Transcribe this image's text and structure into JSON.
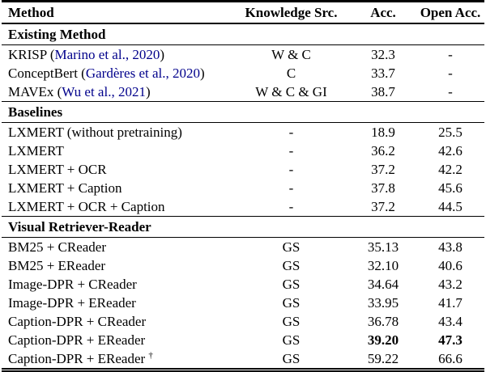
{
  "page": {
    "background": "#ffffff",
    "text_color": "#000000"
  },
  "table": {
    "citation_color": "#00008B",
    "columns": [
      {
        "label": "Method",
        "align": "left"
      },
      {
        "label": "Knowledge Src.",
        "align": "center"
      },
      {
        "label": "Acc.",
        "align": "center"
      },
      {
        "label": "Open Acc.",
        "align": "center"
      }
    ],
    "sections": [
      {
        "title": "Existing Method",
        "rows": [
          {
            "method": "KRISP",
            "citation": "Marino et al., 2020",
            "knowledge_src": "W & C",
            "acc": "32.3",
            "open_acc": "-"
          },
          {
            "method": "ConceptBert",
            "citation": "Gardères et al., 2020",
            "knowledge_src": "C",
            "acc": "33.7",
            "open_acc": "-"
          },
          {
            "method": "MAVEx",
            "citation": "Wu et al., 2021",
            "knowledge_src": "W & C & GI",
            "acc": "38.7",
            "open_acc": "-"
          }
        ]
      },
      {
        "title": "Baselines",
        "rows": [
          {
            "method": "LXMERT (without pretraining)",
            "knowledge_src": "-",
            "acc": "18.9",
            "open_acc": "25.5"
          },
          {
            "method": "LXMERT",
            "knowledge_src": "-",
            "acc": "36.2",
            "open_acc": "42.6"
          },
          {
            "method": "LXMERT + OCR",
            "knowledge_src": "-",
            "acc": "37.2",
            "open_acc": "42.2"
          },
          {
            "method": "LXMERT + Caption",
            "knowledge_src": "-",
            "acc": "37.8",
            "open_acc": "45.6"
          },
          {
            "method": "LXMERT + OCR + Caption",
            "knowledge_src": "-",
            "acc": "37.2",
            "open_acc": "44.5"
          }
        ]
      },
      {
        "title": "Visual Retriever-Reader",
        "rows": [
          {
            "method": "BM25 + CReader",
            "knowledge_src": "GS",
            "acc": "35.13",
            "open_acc": "43.8"
          },
          {
            "method": "BM25 + EReader",
            "knowledge_src": "GS",
            "acc": "32.10",
            "open_acc": "40.6"
          },
          {
            "method": "Image-DPR + CReader",
            "knowledge_src": "GS",
            "acc": "34.64",
            "open_acc": "43.2"
          },
          {
            "method": "Image-DPR + EReader",
            "knowledge_src": "GS",
            "acc": "33.95",
            "open_acc": "41.7"
          },
          {
            "method": "Caption-DPR + CReader",
            "knowledge_src": "GS",
            "acc": "36.78",
            "open_acc": "43.4"
          },
          {
            "method": "Caption-DPR + EReader",
            "knowledge_src": "GS",
            "acc": "39.20",
            "open_acc": "47.3",
            "bold_values": true
          },
          {
            "method": "Caption-DPR + EReader",
            "dagger": "†",
            "knowledge_src": "GS",
            "acc": "59.22",
            "open_acc": "66.6"
          }
        ]
      }
    ]
  }
}
